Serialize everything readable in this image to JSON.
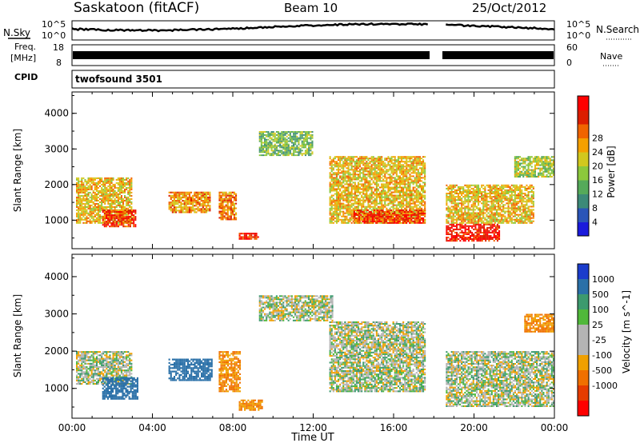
{
  "header": {
    "station": "Saskatoon (fitACF)",
    "beam": "Beam 10",
    "date": "25/Oct/2012"
  },
  "top_panels": {
    "nsky_label": "N.Sky",
    "nsky_top": "10^5",
    "nsky_bottom": "10^0",
    "nsearch_label": "N.Search",
    "right_top": "10^5",
    "right_bottom": "10^0",
    "freq_label_1": "Freq.",
    "freq_label_2": "[MHz]",
    "freq_top": "18",
    "freq_bottom": "8",
    "nave_label": "Nave",
    "nave_top": "60",
    "nave_bottom": "0",
    "cpid_label": "CPID",
    "cpid_value": "twofsound 3501"
  },
  "colorbars": {
    "power": {
      "label": "Power [dB]",
      "ticks": [
        "4",
        "8",
        "12",
        "16",
        "20",
        "24",
        "28"
      ],
      "colors": [
        "#1a1adc",
        "#2a55b8",
        "#3c8a78",
        "#55aa5a",
        "#8cc83c",
        "#d2c81e",
        "#f5a000",
        "#f06400",
        "#dc1e00",
        "#ff0000"
      ]
    },
    "velocity": {
      "label": "Velocity [m s^-1]",
      "ticks": [
        "1000",
        "500",
        "100",
        "25",
        "-25",
        "-100",
        "-500",
        "-1000"
      ],
      "colors": [
        "#1a3ccc",
        "#2a70a8",
        "#3c9a6e",
        "#50b83a",
        "#b4b4b4",
        "#b4b4b4",
        "#f0a000",
        "#f07000",
        "#e63c00",
        "#ff0000"
      ]
    }
  },
  "chart_data": [
    {
      "type": "heatmap",
      "title": "",
      "xlabel": "Time UT",
      "ylabel": "Slant Range [km]",
      "xlim": [
        "00:00",
        "24:00"
      ],
      "ylim": [
        200,
        4600
      ],
      "x_ticks": [
        "00:00",
        "04:00",
        "08:00",
        "12:00",
        "16:00",
        "20:00",
        "00:00"
      ],
      "y_ticks": [
        "1000",
        "2000",
        "3000",
        "4000"
      ],
      "colorbar": "Power [dB]",
      "data_gap": [
        "17:45",
        "18:30"
      ],
      "regions": [
        {
          "t": [
            0.2,
            3.0
          ],
          "range": [
            900,
            2200
          ],
          "power": 20
        },
        {
          "t": [
            1.5,
            3.2
          ],
          "range": [
            800,
            1300
          ],
          "power": 27
        },
        {
          "t": [
            4.8,
            6.9
          ],
          "range": [
            1200,
            1800
          ],
          "power": 22
        },
        {
          "t": [
            7.3,
            8.2
          ],
          "range": [
            1000,
            1800
          ],
          "power": 24
        },
        {
          "t": [
            8.3,
            9.3
          ],
          "range": [
            450,
            650
          ],
          "power": 29
        },
        {
          "t": [
            9.3,
            12.0
          ],
          "range": [
            2800,
            3500
          ],
          "power": 14
        },
        {
          "t": [
            12.8,
            17.6
          ],
          "range": [
            900,
            2800
          ],
          "power": 20
        },
        {
          "t": [
            14.0,
            17.6
          ],
          "range": [
            900,
            1300
          ],
          "power": 27
        },
        {
          "t": [
            18.6,
            23.0
          ],
          "range": [
            900,
            2000
          ],
          "power": 20
        },
        {
          "t": [
            18.6,
            21.3
          ],
          "range": [
            400,
            900
          ],
          "power": 29
        },
        {
          "t": [
            22.0,
            24.0
          ],
          "range": [
            2200,
            2800
          ],
          "power": 16
        }
      ]
    },
    {
      "type": "heatmap",
      "title": "",
      "xlabel": "Time UT",
      "ylabel": "Slant Range [km]",
      "xlim": [
        "00:00",
        "24:00"
      ],
      "ylim": [
        200,
        4600
      ],
      "x_ticks": [
        "00:00",
        "04:00",
        "08:00",
        "12:00",
        "16:00",
        "20:00",
        "00:00"
      ],
      "y_ticks": [
        "1000",
        "2000",
        "3000",
        "4000"
      ],
      "colorbar": "Velocity [m s^-1]",
      "data_gap": [
        "17:45",
        "18:30"
      ],
      "regions": [
        {
          "t": [
            0.2,
            3.0
          ],
          "range": [
            1100,
            2000
          ],
          "velocity": 0
        },
        {
          "t": [
            1.5,
            3.3
          ],
          "range": [
            700,
            1300
          ],
          "velocity": 500
        },
        {
          "t": [
            4.8,
            7.0
          ],
          "range": [
            1200,
            1800
          ],
          "velocity": 500
        },
        {
          "t": [
            7.3,
            8.4
          ],
          "range": [
            900,
            2000
          ],
          "velocity": -300
        },
        {
          "t": [
            8.3,
            9.5
          ],
          "range": [
            400,
            700
          ],
          "velocity": -300
        },
        {
          "t": [
            9.3,
            13.0
          ],
          "range": [
            2800,
            3500
          ],
          "velocity": 0
        },
        {
          "t": [
            12.8,
            17.6
          ],
          "range": [
            900,
            2800
          ],
          "velocity": 0
        },
        {
          "t": [
            18.6,
            24.0
          ],
          "range": [
            500,
            2000
          ],
          "velocity": 0
        },
        {
          "t": [
            22.5,
            24.0
          ],
          "range": [
            2500,
            3000
          ],
          "velocity": -300
        }
      ]
    }
  ]
}
